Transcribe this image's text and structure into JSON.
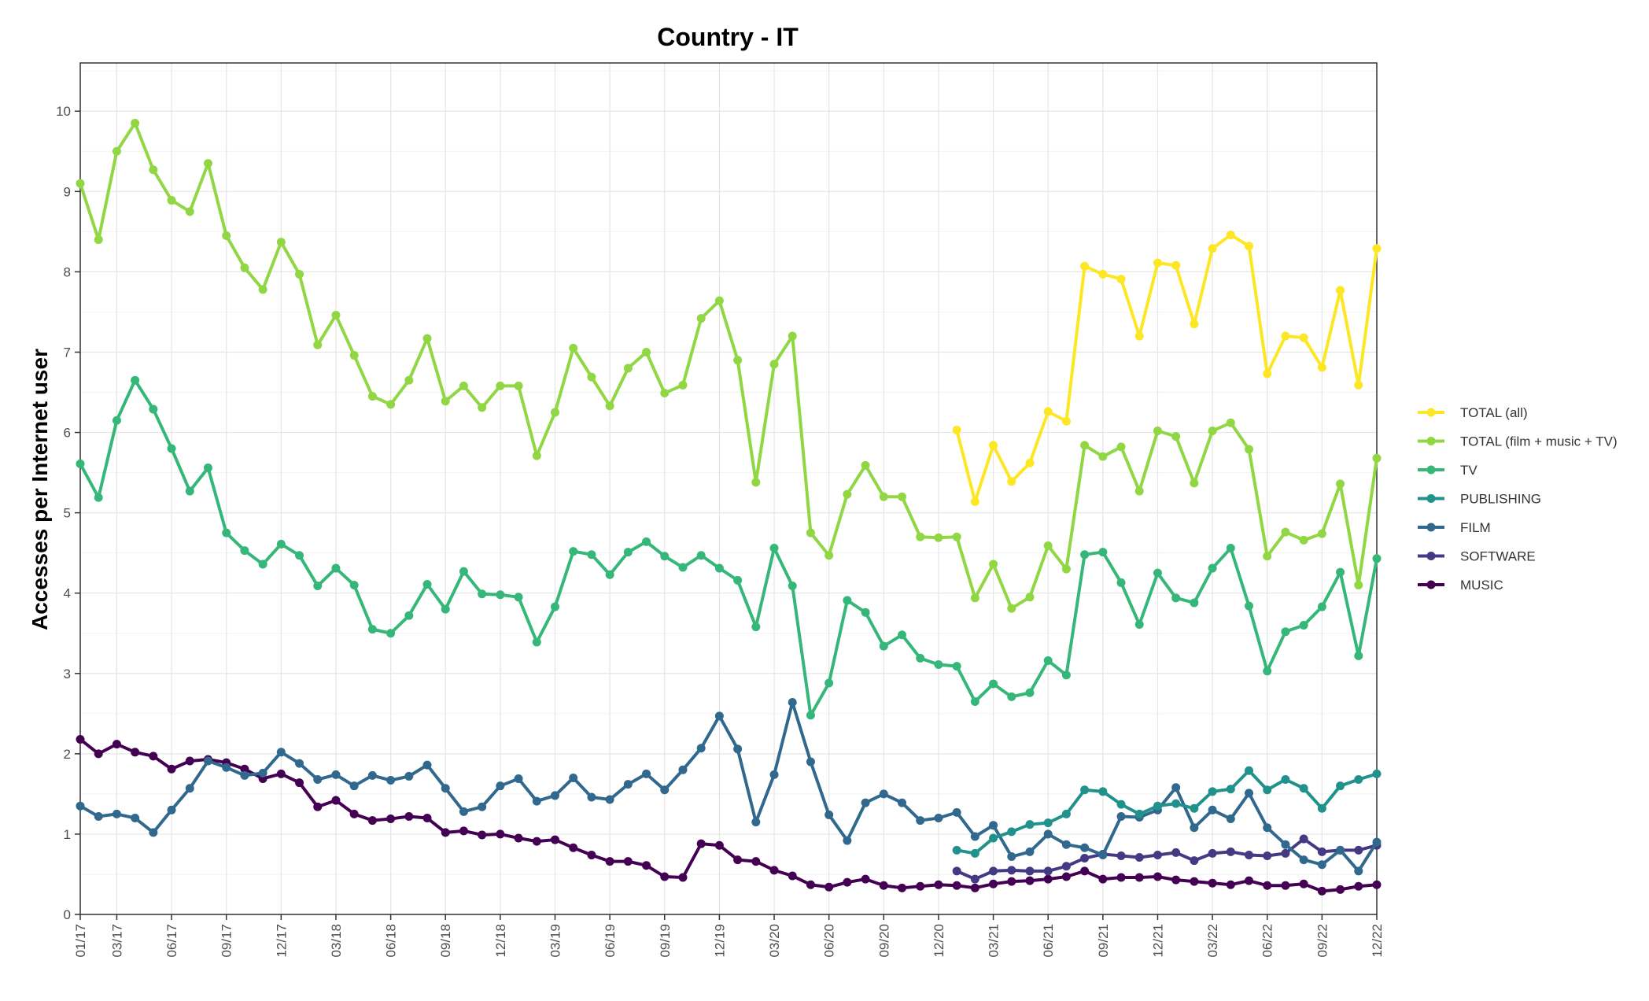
{
  "chart_data": {
    "type": "line",
    "title": "Country - IT",
    "xlabel": "",
    "ylabel": "Accesses per Internet user",
    "ylim": [
      0,
      10.6
    ],
    "yticks": [
      0,
      1,
      2,
      3,
      4,
      5,
      6,
      7,
      8,
      9,
      10
    ],
    "grid": true,
    "legend_position": "right",
    "x_tick_labels": [
      "01/17",
      "03/17",
      "06/17",
      "09/17",
      "12/17",
      "03/18",
      "06/18",
      "09/18",
      "12/18",
      "03/19",
      "06/19",
      "09/19",
      "12/19",
      "03/20",
      "06/20",
      "09/20",
      "12/20",
      "03/21",
      "06/21",
      "09/21",
      "12/21",
      "03/22",
      "06/22",
      "09/22",
      "12/22"
    ],
    "x": [
      "01/17",
      "02/17",
      "03/17",
      "04/17",
      "05/17",
      "06/17",
      "07/17",
      "08/17",
      "09/17",
      "10/17",
      "11/17",
      "12/17",
      "01/18",
      "02/18",
      "03/18",
      "04/18",
      "05/18",
      "06/18",
      "07/18",
      "08/18",
      "09/18",
      "10/18",
      "11/18",
      "12/18",
      "01/19",
      "02/19",
      "03/19",
      "04/19",
      "05/19",
      "06/19",
      "07/19",
      "08/19",
      "09/19",
      "10/19",
      "11/19",
      "12/19",
      "01/20",
      "02/20",
      "03/20",
      "04/20",
      "05/20",
      "06/20",
      "07/20",
      "08/20",
      "09/20",
      "10/20",
      "11/20",
      "12/20",
      "01/21",
      "02/21",
      "03/21",
      "04/21",
      "05/21",
      "06/21",
      "07/21",
      "08/21",
      "09/21",
      "10/21",
      "11/21",
      "12/21",
      "01/22",
      "02/22",
      "03/22",
      "04/22",
      "05/22",
      "06/22",
      "07/22",
      "08/22",
      "09/22",
      "10/22",
      "11/22",
      "12/22"
    ],
    "series": [
      {
        "name": "TOTAL (all)",
        "color": "#fde725",
        "values": [
          null,
          null,
          null,
          null,
          null,
          null,
          null,
          null,
          null,
          null,
          null,
          null,
          null,
          null,
          null,
          null,
          null,
          null,
          null,
          null,
          null,
          null,
          null,
          null,
          null,
          null,
          null,
          null,
          null,
          null,
          null,
          null,
          null,
          null,
          null,
          null,
          null,
          null,
          null,
          null,
          null,
          null,
          null,
          null,
          null,
          null,
          null,
          null,
          6.03,
          5.14,
          5.84,
          5.39,
          5.62,
          6.26,
          6.14,
          8.07,
          7.97,
          7.91,
          7.2,
          8.11,
          8.08,
          7.35,
          8.29,
          8.46,
          8.32,
          6.73,
          7.2,
          7.18,
          6.81,
          7.77,
          6.59,
          8.29
        ]
      },
      {
        "name": "TOTAL (film + music + TV)",
        "color": "#90d743",
        "values": [
          9.1,
          8.4,
          9.5,
          9.85,
          9.27,
          8.89,
          8.75,
          9.35,
          8.45,
          8.05,
          7.78,
          8.37,
          7.97,
          7.09,
          7.46,
          6.96,
          6.45,
          6.35,
          6.65,
          7.17,
          6.39,
          6.58,
          6.31,
          6.58,
          6.58,
          5.71,
          6.25,
          7.05,
          6.69,
          6.33,
          6.8,
          7.0,
          6.49,
          6.59,
          7.42,
          7.64,
          6.9,
          5.38,
          6.85,
          7.2,
          4.75,
          4.47,
          5.23,
          5.59,
          5.2,
          5.2,
          4.7,
          4.69,
          4.7,
          3.94,
          4.36,
          3.81,
          3.95,
          4.59,
          4.3,
          5.84,
          5.7,
          5.82,
          5.27,
          6.02,
          5.95,
          5.37,
          6.02,
          6.12,
          5.79,
          4.46,
          4.76,
          4.66,
          4.74,
          5.36,
          4.1,
          5.68
        ]
      },
      {
        "name": "TV",
        "color": "#35b779",
        "values": [
          5.61,
          5.19,
          6.15,
          6.65,
          6.29,
          5.8,
          5.27,
          5.56,
          4.75,
          4.53,
          4.36,
          4.61,
          4.47,
          4.09,
          4.31,
          4.1,
          3.55,
          3.5,
          3.72,
          4.11,
          3.8,
          4.27,
          3.99,
          3.98,
          3.95,
          3.39,
          3.83,
          4.52,
          4.48,
          4.23,
          4.51,
          4.64,
          4.46,
          4.32,
          4.47,
          4.31,
          4.16,
          3.58,
          4.56,
          4.09,
          2.48,
          2.88,
          3.91,
          3.76,
          3.34,
          3.48,
          3.19,
          3.11,
          3.09,
          2.65,
          2.87,
          2.71,
          2.76,
          3.16,
          2.98,
          4.48,
          4.51,
          4.13,
          3.61,
          4.25,
          3.94,
          3.88,
          4.31,
          4.56,
          3.84,
          3.03,
          3.52,
          3.6,
          3.83,
          4.26,
          3.22,
          4.43
        ]
      },
      {
        "name": "PUBLISHING",
        "color": "#21918c",
        "values": [
          null,
          null,
          null,
          null,
          null,
          null,
          null,
          null,
          null,
          null,
          null,
          null,
          null,
          null,
          null,
          null,
          null,
          null,
          null,
          null,
          null,
          null,
          null,
          null,
          null,
          null,
          null,
          null,
          null,
          null,
          null,
          null,
          null,
          null,
          null,
          null,
          null,
          null,
          null,
          null,
          null,
          null,
          null,
          null,
          null,
          null,
          null,
          null,
          0.8,
          0.76,
          0.95,
          1.03,
          1.12,
          1.14,
          1.25,
          1.55,
          1.53,
          1.37,
          1.25,
          1.35,
          1.38,
          1.32,
          1.53,
          1.56,
          1.79,
          1.55,
          1.68,
          1.57,
          1.32,
          1.6,
          1.68,
          1.75
        ]
      },
      {
        "name": "FILM",
        "color": "#31688e",
        "values": [
          1.35,
          1.22,
          1.25,
          1.2,
          1.02,
          1.3,
          1.57,
          1.91,
          1.83,
          1.73,
          1.76,
          2.02,
          1.88,
          1.68,
          1.74,
          1.6,
          1.73,
          1.67,
          1.72,
          1.86,
          1.57,
          1.28,
          1.34,
          1.6,
          1.69,
          1.41,
          1.48,
          1.7,
          1.46,
          1.43,
          1.62,
          1.75,
          1.55,
          1.8,
          2.07,
          2.47,
          2.06,
          1.15,
          1.74,
          2.64,
          1.9,
          1.24,
          0.92,
          1.39,
          1.5,
          1.39,
          1.17,
          1.2,
          1.27,
          0.97,
          1.11,
          0.72,
          0.78,
          1.0,
          0.87,
          0.83,
          0.74,
          1.22,
          1.21,
          1.3,
          1.58,
          1.08,
          1.3,
          1.19,
          1.51,
          1.08,
          0.87,
          0.68,
          0.62,
          0.8,
          0.54,
          0.9
        ]
      },
      {
        "name": "SOFTWARE",
        "color": "#443a83",
        "values": [
          null,
          null,
          null,
          null,
          null,
          null,
          null,
          null,
          null,
          null,
          null,
          null,
          null,
          null,
          null,
          null,
          null,
          null,
          null,
          null,
          null,
          null,
          null,
          null,
          null,
          null,
          null,
          null,
          null,
          null,
          null,
          null,
          null,
          null,
          null,
          null,
          null,
          null,
          null,
          null,
          null,
          null,
          null,
          null,
          null,
          null,
          null,
          null,
          0.54,
          0.44,
          0.54,
          0.55,
          0.54,
          0.54,
          0.6,
          0.7,
          0.75,
          0.73,
          0.71,
          0.74,
          0.77,
          0.67,
          0.76,
          0.78,
          0.74,
          0.73,
          0.76,
          0.94,
          0.78,
          0.8,
          0.8,
          0.86
        ]
      },
      {
        "name": "MUSIC",
        "color": "#440154",
        "values": [
          2.18,
          2.0,
          2.12,
          2.02,
          1.97,
          1.81,
          1.91,
          1.93,
          1.89,
          1.81,
          1.69,
          1.75,
          1.64,
          1.34,
          1.42,
          1.25,
          1.17,
          1.19,
          1.22,
          1.2,
          1.02,
          1.04,
          0.99,
          1.0,
          0.95,
          0.91,
          0.93,
          0.83,
          0.74,
          0.66,
          0.66,
          0.61,
          0.47,
          0.46,
          0.88,
          0.86,
          0.68,
          0.66,
          0.55,
          0.48,
          0.37,
          0.34,
          0.4,
          0.44,
          0.36,
          0.33,
          0.35,
          0.37,
          0.36,
          0.33,
          0.38,
          0.41,
          0.42,
          0.44,
          0.47,
          0.54,
          0.44,
          0.46,
          0.46,
          0.47,
          0.43,
          0.41,
          0.39,
          0.37,
          0.42,
          0.36,
          0.36,
          0.38,
          0.29,
          0.31,
          0.35,
          0.37
        ]
      }
    ]
  }
}
